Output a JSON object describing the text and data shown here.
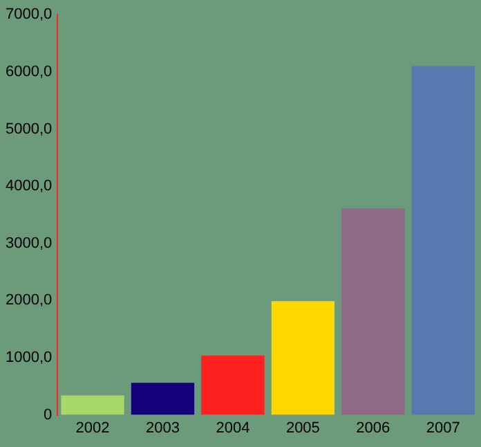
{
  "chart_data": {
    "type": "bar",
    "categories": [
      "2002",
      "2003",
      "2004",
      "2005",
      "2006",
      "2007"
    ],
    "values": [
      340,
      560,
      1040,
      1990,
      3610,
      6100
    ],
    "colors": [
      "#a8d86a",
      "#140078",
      "#ff2020",
      "#ffd800",
      "#906888",
      "#5878b0"
    ],
    "ylim": [
      0,
      7000
    ],
    "yticks": [
      {
        "value": 0,
        "label": "0"
      },
      {
        "value": 1000,
        "label": "1000,0"
      },
      {
        "value": 2000,
        "label": "2000,0"
      },
      {
        "value": 3000,
        "label": "3000,0"
      },
      {
        "value": 4000,
        "label": "4000,0"
      },
      {
        "value": 5000,
        "label": "5000,0"
      },
      {
        "value": 6000,
        "label": "6000,0"
      },
      {
        "value": 7000,
        "label": "7000,0"
      }
    ],
    "grid": false,
    "legend": false
  }
}
